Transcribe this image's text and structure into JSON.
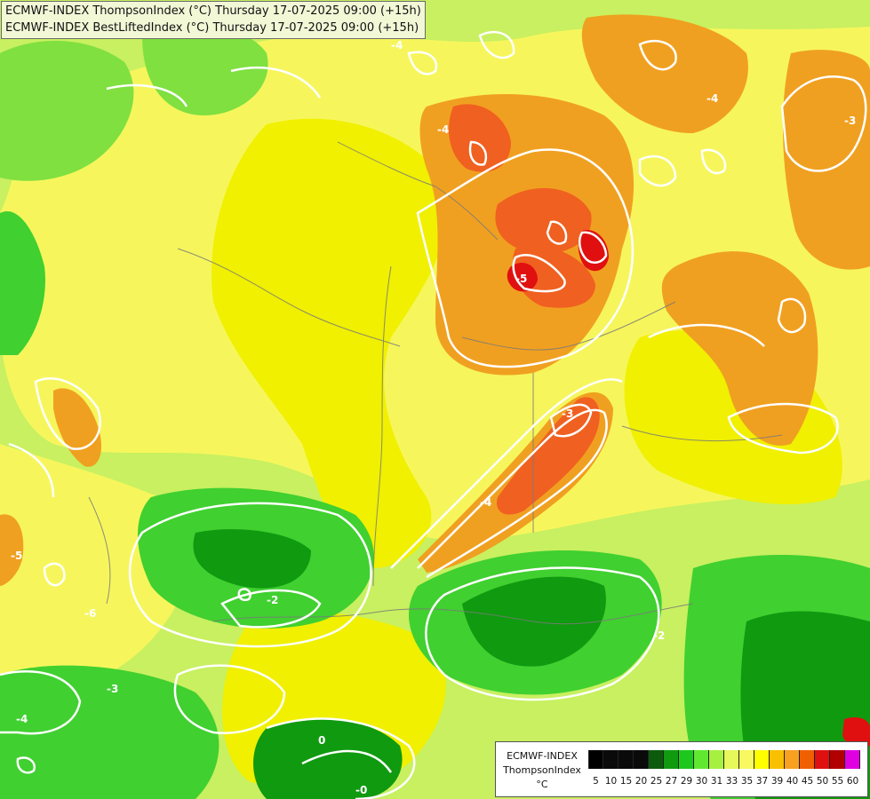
{
  "map": {
    "title_line1": "ECMWF-INDEX ThompsonIndex (°C) Thursday 17-07-2025 09:00 (+15h)",
    "title_line2": "ECMWF-INDEX BestLiftedIndex (°C) Thursday 17-07-2025 09:00 (+15h)",
    "contour_labels": [
      "-4",
      "-5",
      "-3",
      "-4",
      "-3",
      "-5",
      "-4",
      "-2",
      "-2",
      "-4",
      "0",
      "-0",
      "-6",
      "-3",
      "-4"
    ]
  },
  "legend": {
    "line1": "ECMWF-INDEX",
    "line2": "ThompsonIndex",
    "line3": "°C",
    "ticks": [
      "5",
      "10",
      "15",
      "20",
      "25",
      "27",
      "29",
      "30",
      "31",
      "33",
      "35",
      "37",
      "39",
      "40",
      "45",
      "50",
      "55",
      "60"
    ],
    "colors": [
      "#000000",
      "#0a0a0a",
      "#0a0a0a",
      "#0a0a0a",
      "#0c5a0c",
      "#109a10",
      "#1cc81c",
      "#60e830",
      "#a8f040",
      "#e6f85a",
      "#f8f860",
      "#ffff00",
      "#f8c000",
      "#f8a020",
      "#f06000",
      "#e01010",
      "#b00000",
      "#e000e0",
      "#a000f0",
      "#6000f0",
      "#0000f0"
    ]
  },
  "fields": {
    "background": "#c8f060",
    "yellow": "#f6f65c",
    "bright_yellow": "#f0f000",
    "orange": "#f0a020",
    "dark_orange": "#f06020",
    "red": "#e01010",
    "green": "#40d030",
    "dark_green": "#109a10",
    "contour": "#ffffff",
    "border": "#7a7a7a"
  }
}
